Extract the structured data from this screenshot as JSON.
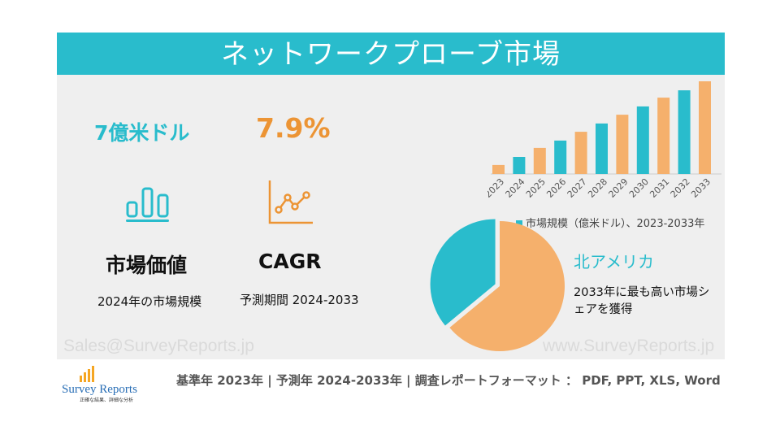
{
  "title": "ネットワークプローブ市場",
  "kpis": {
    "market_value": "7億米ドル",
    "market_label": "市場価値",
    "market_sub": "2024年の市場規模",
    "cagr_value": "7.9%",
    "cagr_label": "CAGR",
    "cagr_sub": "予測期間 2024-2033"
  },
  "watermarks": {
    "left": "Sales@SurveyReports.jp",
    "right": "www.SurveyReports.jp"
  },
  "region": {
    "name": "北アメリカ",
    "desc": "2033年に最も高い市場シェアを獲得"
  },
  "footer": {
    "text": "基準年 2023年 | 予測年 2024-2033年 | 調査レポートフォーマット ： PDF, PPT, XLS, Word"
  },
  "logo": {
    "name": "Survey Reports",
    "tagline": "正確な結果、詳細な分析"
  },
  "colors": {
    "teal": "#29bccc",
    "orange": "#f5b06c",
    "accent_orange": "#ec9434"
  },
  "icons": {
    "market": "bar-chart-icon",
    "cagr": "line-chart-icon"
  },
  "chart_data": [
    {
      "type": "bar",
      "categories": [
        "2023",
        "2024",
        "2025",
        "2026",
        "2027",
        "2028",
        "2029",
        "2030",
        "2031",
        "2032",
        "2033"
      ],
      "values": [
        3.7,
        7,
        10.7,
        13.7,
        17.3,
        20.7,
        24.3,
        27.7,
        31.3,
        34.3,
        38
      ],
      "bar_colors": [
        "#f5b06c",
        "#29bccc",
        "#f5b06c",
        "#29bccc",
        "#f5b06c",
        "#29bccc",
        "#f5b06c",
        "#29bccc",
        "#f5b06c",
        "#29bccc",
        "#f5b06c"
      ],
      "legend": "市場規模（億米ドル）、2023-2033年",
      "legend_placement": "bottom",
      "grid": false
    },
    {
      "type": "pie",
      "slices": [
        {
          "label": "北アメリカ",
          "value": 36,
          "color": "#29bccc"
        },
        {
          "label": "",
          "value": 64,
          "color": "#f5b06c"
        }
      ]
    }
  ]
}
